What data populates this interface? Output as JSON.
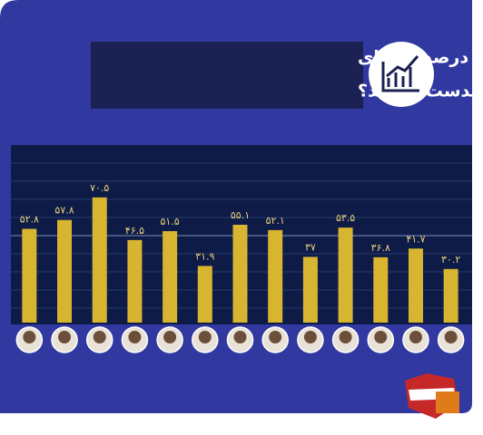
{
  "chart_data": {
    "type": "bar",
    "title": [
      "رؤسای جمهور چند درصد از آرای",
      "واجدان شرایط را بدست آوردند؟"
    ],
    "categories": [
      null,
      null,
      null,
      null,
      null,
      null,
      null,
      null,
      null,
      null,
      null,
      null,
      null
    ],
    "values": [
      52.8,
      57.8,
      70.5,
      46.5,
      51.5,
      31.9,
      55.1,
      52.1,
      37,
      53.5,
      36.8,
      41.7,
      30.2
    ],
    "value_labels": [
      "۵۲.۸",
      "۵۷.۸",
      "۷۰.۵",
      "۴۶.۵",
      "۵۱.۵",
      "۳۱.۹",
      "۵۵.۱",
      "۵۲.۱",
      "۳۷",
      "۵۳.۵",
      "۳۶.۸",
      "۴۱.۷",
      "۳۰.۲"
    ],
    "color": "#d8b530",
    "ylim": [
      0,
      100
    ]
  }
}
